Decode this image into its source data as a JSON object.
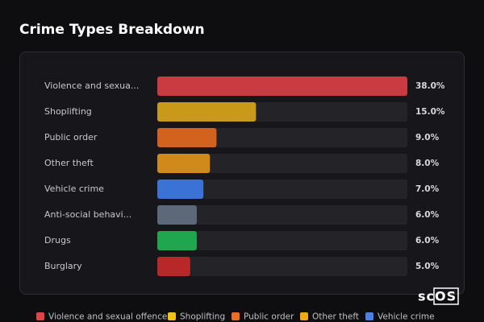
{
  "chart_data": {
    "type": "bar",
    "orientation": "horizontal",
    "title": "Crime Types Breakdown",
    "categories": [
      "Violence and sexua...",
      "Shoplifting",
      "Public order",
      "Other theft",
      "Vehicle crime",
      "Anti-social behavi...",
      "Drugs",
      "Burglary"
    ],
    "values": [
      38,
      15,
      9,
      8,
      7,
      6,
      6,
      5
    ],
    "value_labels": [
      "38.0%",
      "15.0%",
      "9.0%",
      "8.0%",
      "7.0%",
      "6.0%",
      "6.0%",
      "5.0%"
    ],
    "colors": [
      "#c93b40",
      "#c99a1a",
      "#d3621f",
      "#d08a1a",
      "#3b72d6",
      "#5d6878",
      "#1fa64f",
      "#b82828"
    ],
    "xlim": [
      0,
      38
    ],
    "legend": [
      {
        "name": "Violence and sexual offences",
        "color": "#e04444"
      },
      {
        "name": "Shoplifting",
        "color": "#f0c020"
      },
      {
        "name": "Public order",
        "color": "#e87020"
      },
      {
        "name": "Other theft",
        "color": "#f0a820"
      },
      {
        "name": "Vehicle crime",
        "color": "#4a80e8"
      }
    ],
    "watermark": "scOS"
  }
}
